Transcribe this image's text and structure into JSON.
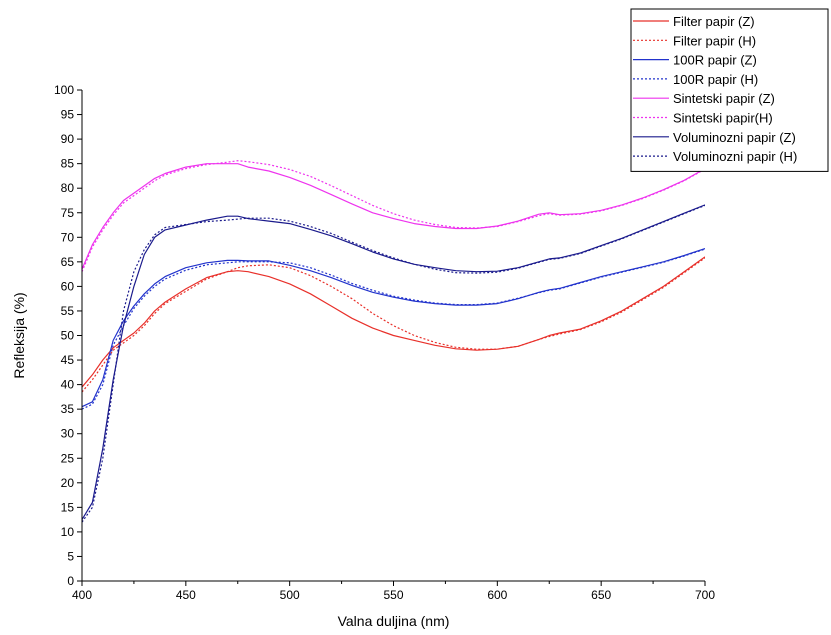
{
  "chart_data": {
    "type": "line",
    "xlabel": "Valna duljina (nm)",
    "ylabel": "Refleksija (%)",
    "xlim": [
      400,
      700
    ],
    "ylim": [
      0,
      100
    ],
    "x_ticks": [
      400,
      450,
      500,
      550,
      600,
      650,
      700
    ],
    "y_ticks": [
      0,
      5,
      10,
      15,
      20,
      25,
      30,
      35,
      40,
      45,
      50,
      55,
      60,
      65,
      70,
      75,
      80,
      85,
      90,
      95,
      100
    ],
    "grid": false,
    "legend_position": "top-right",
    "x": [
      400,
      405,
      410,
      415,
      420,
      425,
      430,
      435,
      440,
      450,
      460,
      470,
      475,
      480,
      490,
      500,
      510,
      520,
      530,
      540,
      550,
      560,
      570,
      580,
      590,
      600,
      610,
      620,
      625,
      630,
      640,
      650,
      660,
      670,
      680,
      690,
      700
    ],
    "series": [
      {
        "name": "Filter papir (Z)",
        "color": "#e8302a",
        "dash": "solid",
        "values": [
          39.5,
          42,
          45,
          47.5,
          49,
          50.5,
          52.5,
          55,
          56.8,
          59.5,
          61.8,
          63,
          63.2,
          63,
          62,
          60.5,
          58.5,
          56,
          53.5,
          51.5,
          50,
          49,
          48,
          47.3,
          47,
          47.2,
          47.8,
          49.2,
          50,
          50.5,
          51.3,
          53,
          55,
          57.5,
          60,
          63,
          66
        ]
      },
      {
        "name": "Filter papir (H)",
        "color": "#e8302a",
        "dash": "dotted",
        "values": [
          38.5,
          41,
          44,
          47,
          48.5,
          50,
          52,
          54.5,
          56.5,
          59,
          61.5,
          63,
          63.8,
          64.2,
          64.4,
          63.8,
          62.2,
          60,
          57.5,
          54.5,
          52,
          50,
          48.6,
          47.6,
          47.2,
          47.2,
          47.8,
          49.2,
          49.8,
          50.3,
          51.2,
          52.8,
          54.8,
          57.3,
          59.8,
          62.8,
          65.8
        ]
      },
      {
        "name": "100R papir (Z)",
        "color": "#2233cc",
        "dash": "solid",
        "values": [
          35.5,
          36.5,
          41,
          49,
          53,
          56,
          58.5,
          60.5,
          62,
          63.8,
          64.8,
          65.3,
          65.3,
          65.2,
          65.2,
          64.3,
          63.2,
          61.8,
          60.2,
          58.8,
          57.8,
          57,
          56.5,
          56.2,
          56.2,
          56.5,
          57.5,
          58.8,
          59.3,
          59.6,
          60.8,
          62,
          63,
          64,
          65,
          66.3,
          67.7
        ]
      },
      {
        "name": "100R papir (H)",
        "color": "#2233cc",
        "dash": "dotted",
        "values": [
          35,
          36,
          40,
          48,
          52,
          55.5,
          58,
          60,
          61.5,
          63.3,
          64.4,
          64.8,
          65,
          65,
          65,
          64.8,
          63.8,
          62.3,
          60.6,
          59.2,
          58,
          57.2,
          56.6,
          56.3,
          56.3,
          56.6,
          57.6,
          58.7,
          59.2,
          59.5,
          60.7,
          61.9,
          62.9,
          63.9,
          64.9,
          66.2,
          67.6
        ]
      },
      {
        "name": "Sintetski papir (Z)",
        "color": "#ee33ee",
        "dash": "solid",
        "values": [
          63.5,
          68.5,
          72,
          75,
          77.5,
          79,
          80.5,
          82,
          83,
          84.3,
          85,
          85,
          85,
          84.3,
          83.5,
          82.2,
          80.6,
          78.7,
          76.8,
          75,
          73.8,
          72.8,
          72.2,
          71.8,
          71.8,
          72.3,
          73.3,
          74.7,
          75,
          74.6,
          74.8,
          75.5,
          76.6,
          78,
          79.7,
          81.6,
          84
        ]
      },
      {
        "name": "Sintetski papir(H)",
        "color": "#ee33ee",
        "dash": "dotted",
        "values": [
          63,
          68,
          71.5,
          74.5,
          77,
          78.5,
          80,
          81.5,
          82.7,
          84,
          84.8,
          85.3,
          85.6,
          85.4,
          84.8,
          83.8,
          82.4,
          80.5,
          78.5,
          76.5,
          74.8,
          73.5,
          72.6,
          72,
          71.9,
          72.2,
          73.2,
          74.4,
          74.8,
          74.5,
          74.7,
          75.4,
          76.5,
          77.9,
          79.6,
          81.5,
          83.9
        ]
      },
      {
        "name": "Voluminozni papir (Z)",
        "color": "#1a1a8c",
        "dash": "solid",
        "values": [
          12.5,
          16,
          27,
          41,
          52,
          60,
          66.5,
          70,
          71.5,
          72.5,
          73.5,
          74.3,
          74.3,
          73.8,
          73.3,
          72.8,
          71.6,
          70.3,
          68.7,
          67,
          65.6,
          64.5,
          63.8,
          63.2,
          63,
          63.1,
          63.8,
          65,
          65.6,
          65.8,
          66.8,
          68.3,
          69.8,
          71.5,
          73.2,
          74.9,
          76.6
        ]
      },
      {
        "name": "Voluminozni papir (H)",
        "color": "#1a1a8c",
        "dash": "dotted",
        "values": [
          12,
          15,
          25,
          40,
          55,
          63,
          67.5,
          70.5,
          72,
          72.6,
          73.2,
          73.5,
          73.7,
          73.9,
          73.9,
          73.3,
          72.2,
          70.8,
          69,
          67.3,
          65.8,
          64.5,
          63.5,
          62.8,
          62.7,
          62.9,
          63.7,
          64.9,
          65.5,
          65.7,
          66.7,
          68.2,
          69.7,
          71.4,
          73.1,
          74.8,
          76.5
        ]
      }
    ]
  }
}
